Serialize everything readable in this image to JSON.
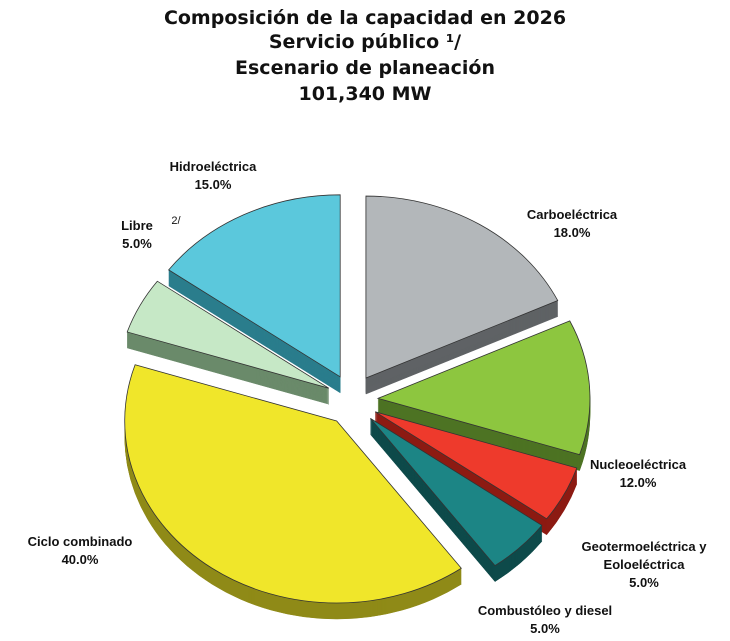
{
  "chart_data": {
    "type": "pie",
    "title": "Composición de la capacidad en 2026",
    "subtitle": [
      "Servicio público ¹/",
      "Escenario de planeación",
      "101,340 MW"
    ],
    "categories": [
      "Carboeléctrica",
      "Nucleoeléctrica",
      "Geotermoeléctrica y Eoloeléctrica",
      "Combustóleo y diesel",
      "Ciclo combinado",
      "Libre",
      "Hidroeléctrica"
    ],
    "values": [
      18.0,
      12.0,
      5.0,
      5.0,
      40.0,
      5.0,
      15.0
    ],
    "value_labels": [
      "18.0%",
      "12.0%",
      "5.0%",
      "5.0%",
      "40.0%",
      "5.0%",
      "15.0%"
    ],
    "colors": [
      "#b3b7ba",
      "#8dc63f",
      "#ee3a2c",
      "#1c8585",
      "#f0e62a",
      "#c6e8c6",
      "#5bc8dc"
    ],
    "side_colors": [
      "#5f6265",
      "#4d7323",
      "#8c1a12",
      "#0e4a4a",
      "#8f8a17",
      "#6a8a6a",
      "#2a7d8c"
    ],
    "annotations": [
      "2/"
    ]
  }
}
